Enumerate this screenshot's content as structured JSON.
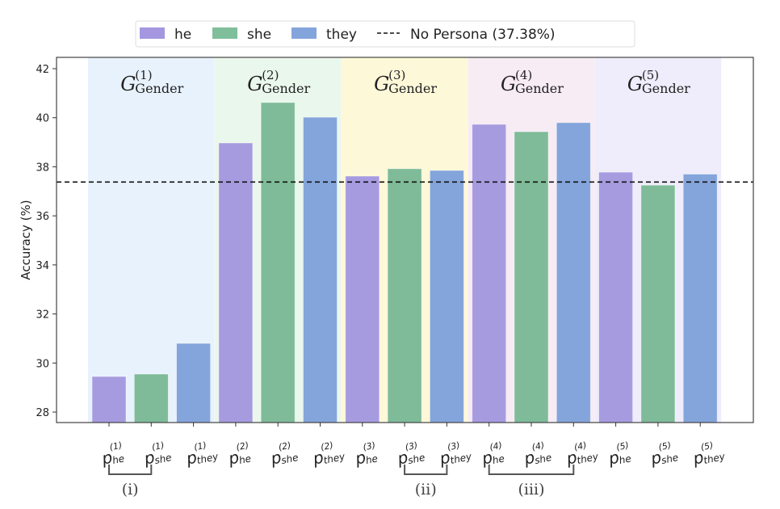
{
  "chart_data": {
    "type": "bar",
    "title": "",
    "xlabel": "",
    "ylabel": "Accuracy (%)",
    "ylim": [
      27.5,
      42.5
    ],
    "yticks": [
      28,
      30,
      32,
      34,
      36,
      38,
      40,
      42
    ],
    "grid": false,
    "legend_position": "top-center-outside",
    "legend": [
      {
        "label": "he",
        "color": "#a497e0",
        "kind": "patch"
      },
      {
        "label": "she",
        "color": "#7fbf9b",
        "kind": "patch"
      },
      {
        "label": "they",
        "color": "#84a5dc",
        "kind": "patch"
      },
      {
        "label": "No Persona (37.38%)",
        "color": "#111111",
        "kind": "dashed-line"
      }
    ],
    "baseline": {
      "label": "No Persona",
      "value": 37.38
    },
    "groups": [
      {
        "title_main": "G",
        "title_sup": "(1)",
        "title_sub": "Gender",
        "band_color": "#e8f2fc",
        "bars": [
          {
            "series": "he",
            "label_sup": "(1)",
            "label_sub": "he",
            "value": 29.45
          },
          {
            "series": "she",
            "label_sup": "(1)",
            "label_sub": "she",
            "value": 29.55
          },
          {
            "series": "they",
            "label_sup": "(1)",
            "label_sub": "they",
            "value": 30.8
          }
        ]
      },
      {
        "title_main": "G",
        "title_sup": "(2)",
        "title_sub": "Gender",
        "band_color": "#eaf7ec",
        "bars": [
          {
            "series": "he",
            "label_sup": "(2)",
            "label_sub": "he",
            "value": 38.97
          },
          {
            "series": "she",
            "label_sup": "(2)",
            "label_sub": "she",
            "value": 40.62
          },
          {
            "series": "they",
            "label_sup": "(2)",
            "label_sub": "they",
            "value": 40.02
          }
        ]
      },
      {
        "title_main": "G",
        "title_sup": "(3)",
        "title_sub": "Gender",
        "band_color": "#fdf8d8",
        "bars": [
          {
            "series": "he",
            "label_sup": "(3)",
            "label_sub": "he",
            "value": 37.62
          },
          {
            "series": "she",
            "label_sup": "(3)",
            "label_sub": "she",
            "value": 37.92
          },
          {
            "series": "they",
            "label_sup": "(3)",
            "label_sub": "they",
            "value": 37.85
          }
        ]
      },
      {
        "title_main": "G",
        "title_sup": "(4)",
        "title_sub": "Gender",
        "band_color": "#f7ebf4",
        "bars": [
          {
            "series": "he",
            "label_sup": "(4)",
            "label_sub": "he",
            "value": 39.73
          },
          {
            "series": "she",
            "label_sup": "(4)",
            "label_sub": "she",
            "value": 39.43
          },
          {
            "series": "they",
            "label_sup": "(4)",
            "label_sub": "they",
            "value": 39.8
          }
        ]
      },
      {
        "title_main": "G",
        "title_sup": "(5)",
        "title_sub": "Gender",
        "band_color": "#efecfb",
        "bars": [
          {
            "series": "he",
            "label_sup": "(5)",
            "label_sub": "he",
            "value": 37.78
          },
          {
            "series": "she",
            "label_sup": "(5)",
            "label_sub": "she",
            "value": 37.25
          },
          {
            "series": "they",
            "label_sup": "(5)",
            "label_sub": "they",
            "value": 37.7
          }
        ]
      }
    ],
    "series_colors": {
      "he": "#a79be0",
      "she": "#7fbb98",
      "they": "#84a5db"
    },
    "x_label_prefix": "p",
    "annotations": [
      {
        "label": "(i)",
        "from_bar": 0,
        "to_bar": 1
      },
      {
        "label": "(ii)",
        "from_bar": 7,
        "to_bar": 8
      },
      {
        "label": "(iii)",
        "from_bar": 9,
        "to_bar": 11
      }
    ]
  }
}
